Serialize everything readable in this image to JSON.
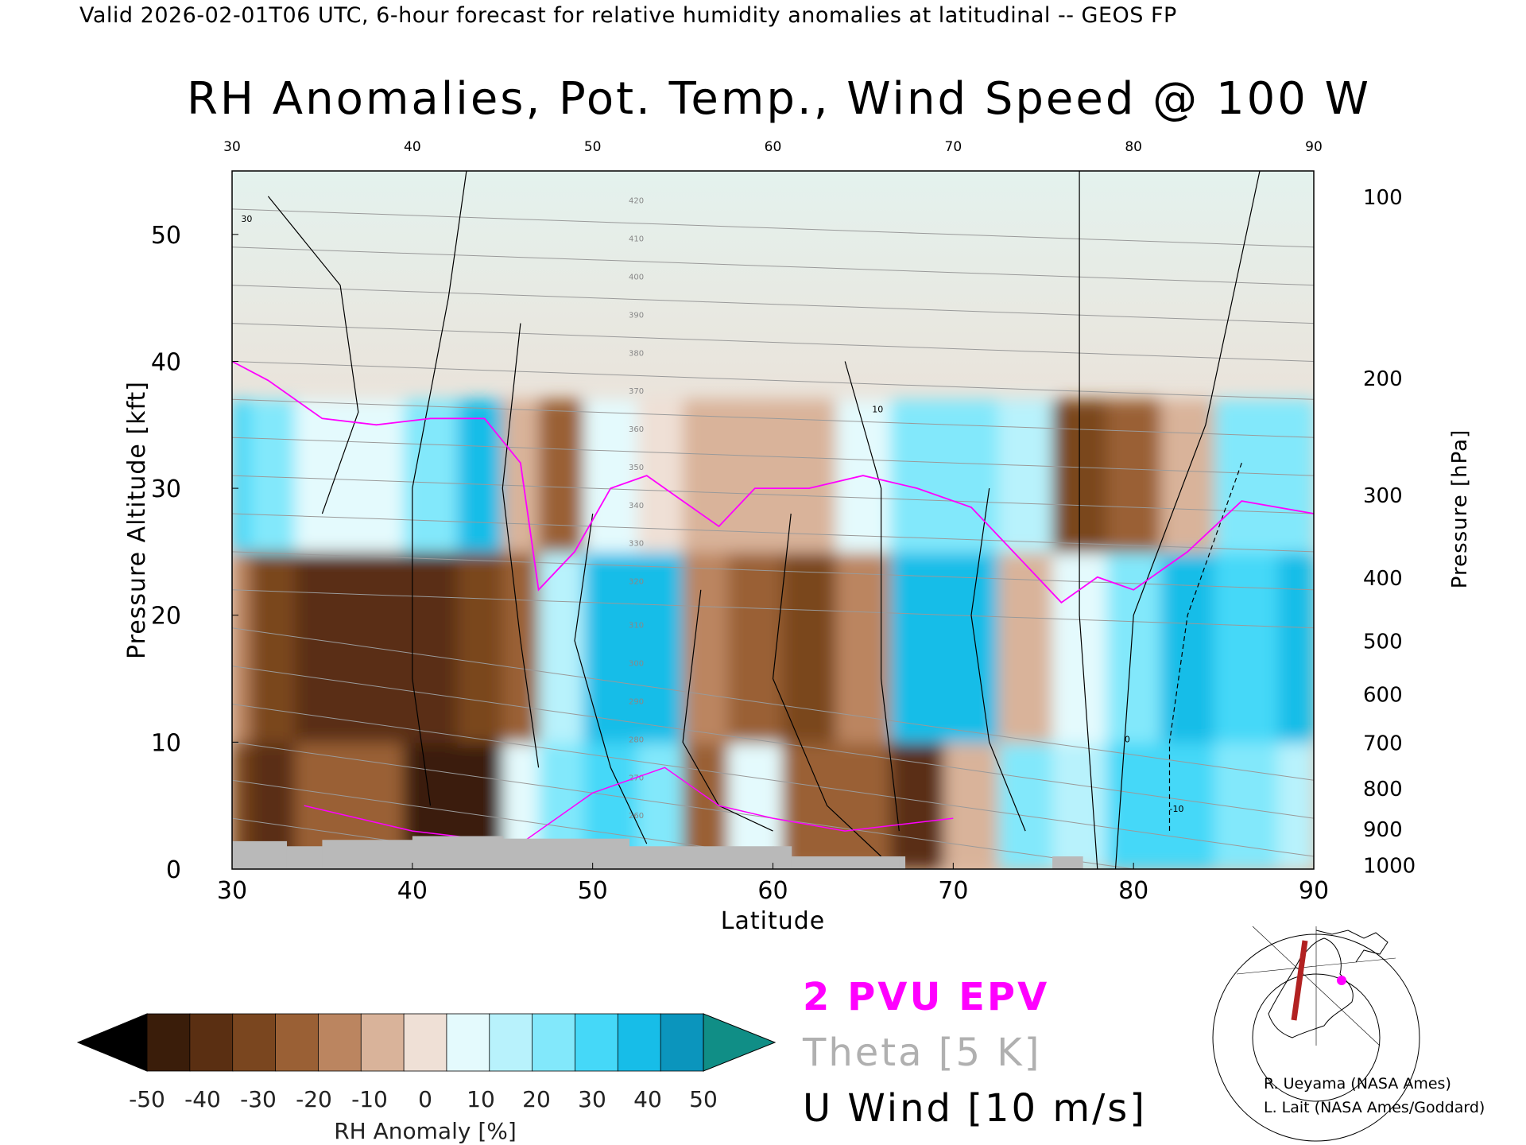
{
  "header_text": "Valid 2026-02-01T06 UTC, 6-hour forecast for relative humidity anomalies at latitudinal -- GEOS FP",
  "chart_data": {
    "type": "heatmap",
    "title": "RH Anomalies, Pot. Temp., Wind Speed @ 100 W",
    "xlabel": "Latitude",
    "ylabel_left": "Pressure Altitude [kft]",
    "ylabel_right": "Pressure [hPa]",
    "xlim": [
      30,
      90
    ],
    "ylim_kft": [
      0,
      55
    ],
    "x_ticks": [
      "30",
      "40",
      "50",
      "60",
      "70",
      "80",
      "90"
    ],
    "y_ticks_kft": [
      "0",
      "10",
      "20",
      "30",
      "40",
      "50"
    ],
    "y_ticks_kft_values": [
      0,
      10,
      20,
      30,
      40,
      50
    ],
    "pressure_ticks": [
      "100",
      "200",
      "300",
      "400",
      "500",
      "600",
      "700",
      "800",
      "900",
      "1000"
    ],
    "pressure_ticks_kft": [
      53.0,
      38.7,
      29.5,
      23.0,
      18.0,
      13.8,
      10.0,
      6.4,
      3.2,
      0.35
    ],
    "theta_contour_labels": [
      "420",
      "410",
      "400",
      "390",
      "380",
      "370",
      "360",
      "350",
      "340",
      "330",
      "320",
      "310",
      "300",
      "290",
      "280",
      "270",
      "260",
      "250"
    ],
    "wind_contour_labels": [
      "30",
      "10",
      "0",
      "-10"
    ],
    "colorbar": {
      "label": "RH Anomaly [%]",
      "ticks": [
        "-50",
        "-40",
        "-30",
        "-20",
        "-10",
        "0",
        "10",
        "20",
        "30",
        "40",
        "50"
      ],
      "colors": [
        "#000000",
        "#3a1d0a",
        "#5a2f12",
        "#7a461f",
        "#9a6035",
        "#bb8560",
        "#d9b39a",
        "#efe0d6",
        "#e4fafd",
        "#b8f2fc",
        "#82e8fb",
        "#45d8f8",
        "#17bde8",
        "#0b95bd",
        "#108e86"
      ]
    },
    "legend": {
      "epv": "2 PVU EPV",
      "theta": "Theta [5 K]",
      "uwind": "U Wind [10 m/s]",
      "epv_color": "#ff00ff",
      "theta_color": "#b0b0b0",
      "uwind_color": "#000000"
    },
    "anomaly_columns": [
      {
        "lat": 30,
        "upper": 30,
        "mid": -15,
        "low": -30
      },
      {
        "lat": 32,
        "upper": 25,
        "mid": -30,
        "low": -35
      },
      {
        "lat": 35,
        "upper": 5,
        "mid": -35,
        "low": -25
      },
      {
        "lat": 38,
        "upper": 10,
        "mid": -40,
        "low": -20
      },
      {
        "lat": 41,
        "upper": 25,
        "mid": -42,
        "low": -45
      },
      {
        "lat": 44,
        "upper": 35,
        "mid": -30,
        "low": -45
      },
      {
        "lat": 46,
        "upper": -10,
        "mid": -25,
        "low": 10
      },
      {
        "lat": 48,
        "upper": -20,
        "mid": 15,
        "low": 25
      },
      {
        "lat": 51,
        "upper": 5,
        "mid": 40,
        "low": 30
      },
      {
        "lat": 54,
        "upper": 0,
        "mid": 35,
        "low": 20
      },
      {
        "lat": 56,
        "upper": -5,
        "mid": -15,
        "low": -20
      },
      {
        "lat": 59,
        "upper": -10,
        "mid": -25,
        "low": 5
      },
      {
        "lat": 62,
        "upper": -8,
        "mid": -30,
        "low": -20
      },
      {
        "lat": 65,
        "upper": 10,
        "mid": -15,
        "low": -25
      },
      {
        "lat": 68,
        "upper": 25,
        "mid": 35,
        "low": -40
      },
      {
        "lat": 71,
        "upper": 20,
        "mid": 40,
        "low": -10
      },
      {
        "lat": 74,
        "upper": 15,
        "mid": -10,
        "low": 25
      },
      {
        "lat": 77,
        "upper": -30,
        "mid": 5,
        "low": 15
      },
      {
        "lat": 80,
        "upper": -25,
        "mid": 25,
        "low": 30
      },
      {
        "lat": 83,
        "upper": -10,
        "mid": 35,
        "low": 30
      },
      {
        "lat": 86,
        "upper": 20,
        "mid": 30,
        "low": 20
      },
      {
        "lat": 90,
        "upper": 25,
        "mid": 40,
        "low": 15
      }
    ],
    "pv2_line": [
      {
        "lat": 30,
        "kft": 40
      },
      {
        "lat": 32,
        "kft": 38.5
      },
      {
        "lat": 35,
        "kft": 35.5
      },
      {
        "lat": 38,
        "kft": 35
      },
      {
        "lat": 41,
        "kft": 35.5
      },
      {
        "lat": 44,
        "kft": 35.5
      },
      {
        "lat": 46,
        "kft": 32
      },
      {
        "lat": 47,
        "kft": 22
      },
      {
        "lat": 49,
        "kft": 25
      },
      {
        "lat": 51,
        "kft": 30
      },
      {
        "lat": 53,
        "kft": 31
      },
      {
        "lat": 55,
        "kft": 29
      },
      {
        "lat": 57,
        "kft": 27
      },
      {
        "lat": 59,
        "kft": 30
      },
      {
        "lat": 62,
        "kft": 30
      },
      {
        "lat": 65,
        "kft": 31
      },
      {
        "lat": 68,
        "kft": 30
      },
      {
        "lat": 71,
        "kft": 28.5
      },
      {
        "lat": 74,
        "kft": 24
      },
      {
        "lat": 76,
        "kft": 21
      },
      {
        "lat": 78,
        "kft": 23
      },
      {
        "lat": 80,
        "kft": 22
      },
      {
        "lat": 83,
        "kft": 25
      },
      {
        "lat": 86,
        "kft": 29
      },
      {
        "lat": 90,
        "kft": 28
      }
    ],
    "credits": [
      "R. Ueyama (NASA Ames)",
      "L. Lait (NASA Ames/Goddard)"
    ]
  }
}
